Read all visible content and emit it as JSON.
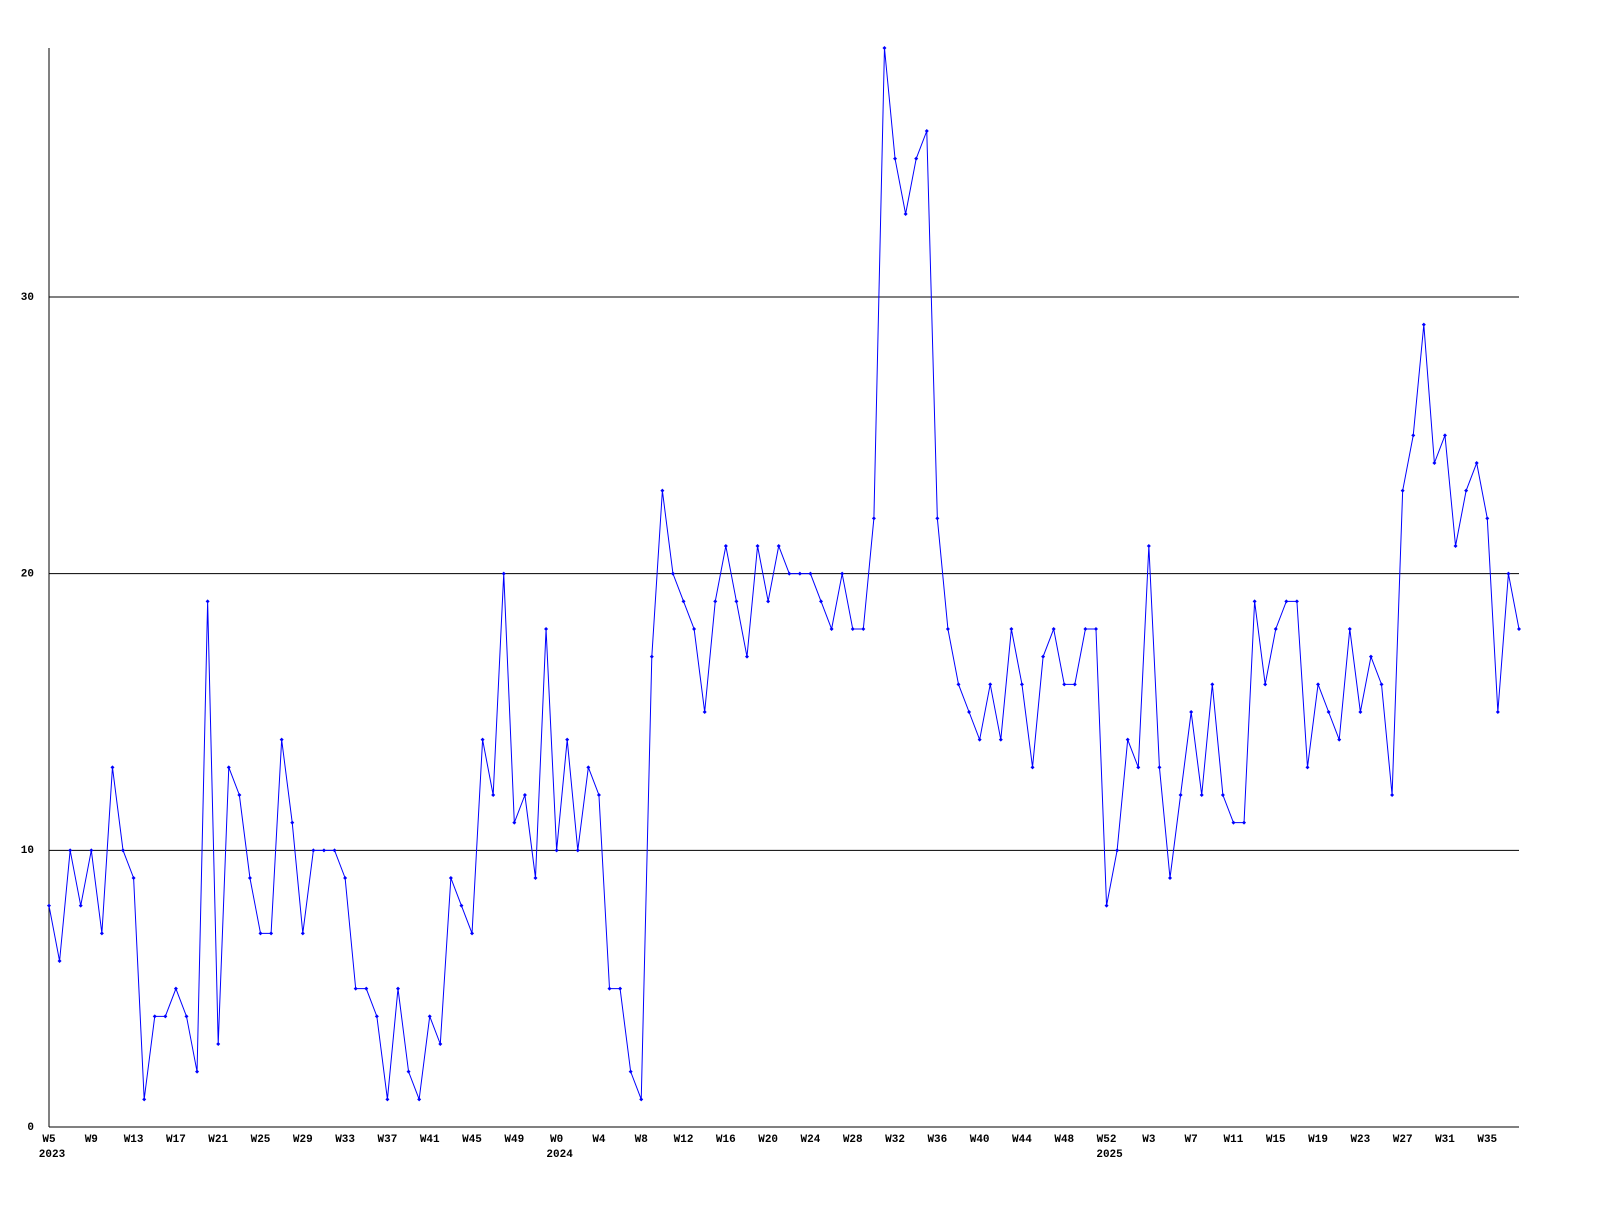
{
  "chart_data": {
    "type": "line",
    "categories": [
      "W5",
      null,
      null,
      null,
      "W9",
      null,
      null,
      null,
      "W13",
      null,
      null,
      null,
      "W17",
      null,
      null,
      null,
      "W21",
      null,
      null,
      null,
      "W25",
      null,
      null,
      null,
      "W29",
      null,
      null,
      null,
      "W33",
      null,
      null,
      null,
      "W37",
      null,
      null,
      null,
      "W41",
      null,
      null,
      null,
      "W45",
      null,
      null,
      null,
      "W49",
      null,
      null,
      null,
      "W0",
      null,
      null,
      null,
      "W4",
      null,
      null,
      null,
      "W8",
      null,
      null,
      null,
      "W12",
      null,
      null,
      null,
      "W16",
      null,
      null,
      null,
      "W20",
      null,
      null,
      null,
      "W24",
      null,
      null,
      null,
      "W28",
      null,
      null,
      null,
      "W32",
      null,
      null,
      null,
      "W36",
      null,
      null,
      null,
      "W40",
      null,
      null,
      null,
      "W44",
      null,
      null,
      null,
      "W48",
      null,
      null,
      null,
      "W52",
      null,
      null,
      null,
      "W3",
      null,
      null,
      null,
      "W7",
      null,
      null,
      null,
      "W11",
      null,
      null,
      null,
      "W15",
      null,
      null,
      null,
      "W19",
      null,
      null,
      null,
      "W23",
      null,
      null,
      null,
      "W27",
      null,
      null,
      null,
      "W31",
      null,
      null,
      null,
      "W35",
      null,
      null,
      null
    ],
    "years": [
      "2023",
      null,
      null,
      null,
      null,
      null,
      null,
      null,
      null,
      null,
      null,
      null,
      null,
      null,
      null,
      null,
      null,
      null,
      null,
      null,
      null,
      null,
      null,
      null,
      null,
      null,
      null,
      null,
      null,
      null,
      null,
      null,
      null,
      null,
      null,
      null,
      null,
      null,
      null,
      null,
      null,
      null,
      null,
      null,
      null,
      null,
      null,
      null,
      "2024",
      null,
      null,
      null,
      null,
      null,
      null,
      null,
      null,
      null,
      null,
      null,
      null,
      null,
      null,
      null,
      null,
      null,
      null,
      null,
      null,
      null,
      null,
      null,
      null,
      null,
      null,
      null,
      null,
      null,
      null,
      null,
      null,
      null,
      null,
      null,
      null,
      null,
      null,
      null,
      null,
      null,
      null,
      null,
      null,
      null,
      null,
      null,
      null,
      null,
      null,
      null,
      "2025",
      null,
      null,
      null,
      null,
      null,
      null,
      null,
      null,
      null,
      null,
      null,
      null,
      null,
      null,
      null,
      null,
      null,
      null,
      null,
      null,
      null,
      null,
      null,
      null,
      null,
      null,
      null,
      null,
      null,
      null,
      null,
      null,
      null,
      null,
      null,
      null,
      null,
      null
    ],
    "series": [
      {
        "color": "#0000ff",
        "values": [
          8,
          6,
          10,
          8,
          10,
          7,
          13,
          10,
          9,
          1,
          4,
          4,
          5,
          4,
          2,
          19,
          3,
          13,
          12,
          9,
          7,
          7,
          14,
          11,
          7,
          10,
          10,
          10,
          9,
          5,
          5,
          4,
          1,
          5,
          2,
          1,
          4,
          3,
          9,
          8,
          7,
          14,
          12,
          20,
          11,
          12,
          9,
          18,
          10,
          14,
          10,
          13,
          12,
          5,
          5,
          2,
          1,
          17,
          23,
          20,
          19,
          18,
          15,
          19,
          21,
          19,
          17,
          21,
          19,
          21,
          20,
          20,
          20,
          19,
          18,
          20,
          18,
          18,
          22,
          39,
          35,
          33,
          35,
          36,
          22,
          18,
          16,
          15,
          14,
          16,
          14,
          18,
          16,
          13,
          17,
          18,
          16,
          16,
          18,
          18,
          8,
          10,
          14,
          13,
          21,
          13,
          9,
          12,
          15,
          12,
          16,
          12,
          11,
          11,
          19,
          16,
          18,
          19,
          19,
          13,
          16,
          15,
          14,
          18,
          15,
          17,
          16,
          12,
          23,
          25,
          29,
          24,
          25,
          21,
          23,
          24,
          22,
          15,
          20,
          18
        ]
      }
    ],
    "ylim": [
      0,
      39
    ],
    "yticks": [
      0,
      10,
      20,
      30
    ],
    "grid": true
  }
}
